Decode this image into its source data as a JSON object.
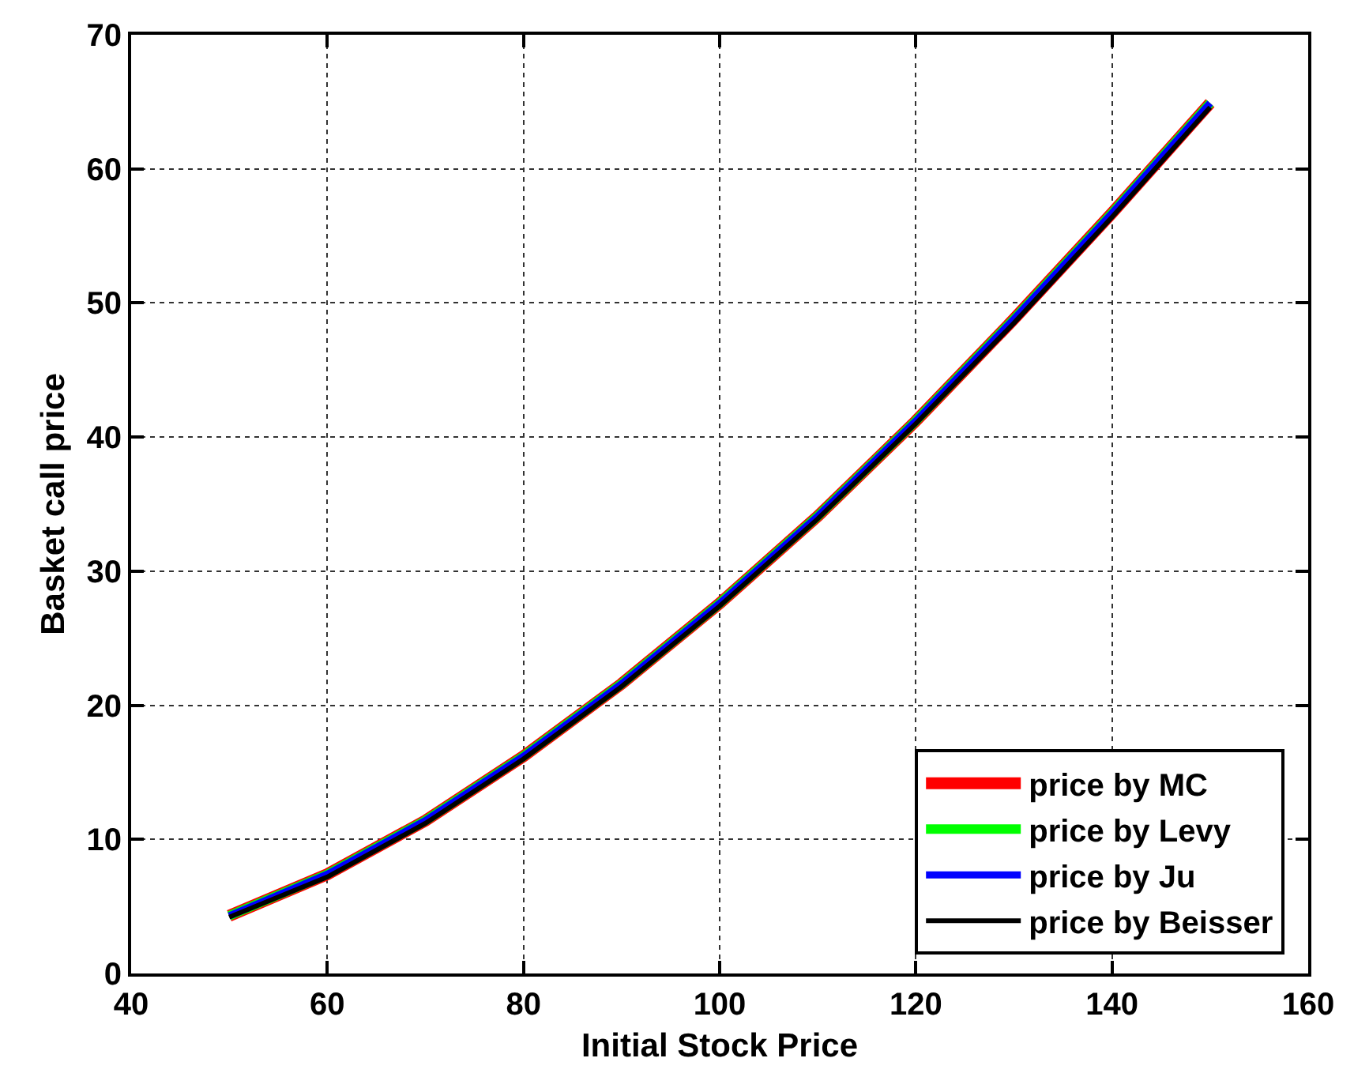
{
  "chart_data": {
    "type": "line",
    "xlabel": "Initial Stock Price",
    "ylabel": "Basket call price",
    "x": [
      50,
      60,
      70,
      80,
      90,
      100,
      110,
      120,
      130,
      140,
      150
    ],
    "series": [
      {
        "name": "price by MC",
        "color": "#ff0000",
        "values": [
          4.3,
          7.4,
          11.4,
          16.2,
          21.6,
          27.6,
          34.1,
          41.2,
          48.8,
          56.7,
          64.9
        ]
      },
      {
        "name": "price by Levy",
        "color": "#00ff00",
        "values": [
          4.3,
          7.4,
          11.4,
          16.2,
          21.6,
          27.6,
          34.1,
          41.2,
          48.8,
          56.7,
          64.9
        ]
      },
      {
        "name": "price by Ju",
        "color": "#0000ff",
        "values": [
          4.3,
          7.4,
          11.4,
          16.2,
          21.6,
          27.6,
          34.1,
          41.2,
          48.8,
          56.7,
          64.9
        ]
      },
      {
        "name": "price by Beisser",
        "color": "#000000",
        "values": [
          4.2,
          7.2,
          11.2,
          16.0,
          21.4,
          27.4,
          33.9,
          41.0,
          48.5,
          56.4,
          64.6
        ]
      }
    ],
    "xlim": [
      40,
      160
    ],
    "xticks": [
      40,
      60,
      80,
      100,
      120,
      140,
      160
    ],
    "ylim": [
      0,
      70
    ],
    "yticks": [
      0,
      10,
      20,
      30,
      40,
      50,
      60,
      70
    ],
    "grid": true,
    "legend": "bottom right",
    "line_style": "solid"
  }
}
